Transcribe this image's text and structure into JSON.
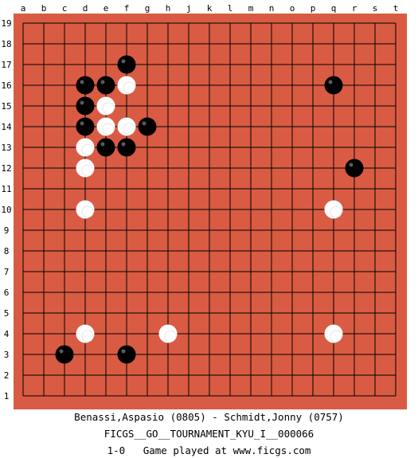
{
  "board": {
    "background_color": "#d95b43",
    "line_color": "#000000",
    "size": 19,
    "column_labels": [
      "a",
      "b",
      "c",
      "d",
      "e",
      "f",
      "g",
      "h",
      "j",
      "k",
      "l",
      "m",
      "n",
      "o",
      "p",
      "q",
      "r",
      "s",
      "t"
    ],
    "row_labels": [
      "19",
      "18",
      "17",
      "16",
      "15",
      "14",
      "13",
      "12",
      "11",
      "10",
      "9",
      "8",
      "7",
      "6",
      "5",
      "4",
      "3",
      "2",
      "1"
    ],
    "stones": [
      {
        "color": "black",
        "col": "f",
        "row": 17
      },
      {
        "color": "black",
        "col": "d",
        "row": 16
      },
      {
        "color": "black",
        "col": "e",
        "row": 16
      },
      {
        "color": "white",
        "col": "f",
        "row": 16
      },
      {
        "color": "black",
        "col": "q",
        "row": 16
      },
      {
        "color": "black",
        "col": "d",
        "row": 15
      },
      {
        "color": "white",
        "col": "e",
        "row": 15
      },
      {
        "color": "black",
        "col": "d",
        "row": 14
      },
      {
        "color": "white",
        "col": "e",
        "row": 14
      },
      {
        "color": "white",
        "col": "f",
        "row": 14
      },
      {
        "color": "black",
        "col": "g",
        "row": 14
      },
      {
        "color": "white",
        "col": "d",
        "row": 13
      },
      {
        "color": "black",
        "col": "e",
        "row": 13
      },
      {
        "color": "black",
        "col": "f",
        "row": 13
      },
      {
        "color": "white",
        "col": "d",
        "row": 12
      },
      {
        "color": "black",
        "col": "r",
        "row": 12
      },
      {
        "color": "white",
        "col": "d",
        "row": 10
      },
      {
        "color": "white",
        "col": "q",
        "row": 10
      },
      {
        "color": "white",
        "col": "d",
        "row": 4
      },
      {
        "color": "white",
        "col": "h",
        "row": 4
      },
      {
        "color": "white",
        "col": "q",
        "row": 4
      },
      {
        "color": "black",
        "col": "c",
        "row": 3
      },
      {
        "color": "black",
        "col": "f",
        "row": 3
      }
    ]
  },
  "caption": {
    "players": "Benassi,Aspasio (0805) - Schmidt,Jonny (0757)",
    "tournament": "FICGS__GO__TOURNAMENT_KYU_I__000066",
    "result_line": "1-0   Game played at www.ficgs.com"
  }
}
